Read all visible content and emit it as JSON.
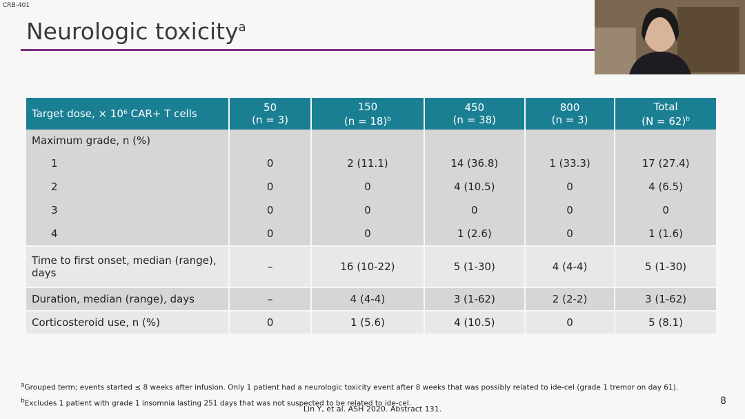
{
  "header": {
    "label": "CRB-401",
    "title": "Neurologic toxicity",
    "title_note": "a"
  },
  "table": {
    "corner": "Target dose, × 10⁶ CAR+ T cells",
    "columns": [
      {
        "dose": "50",
        "n": "(n = 3)"
      },
      {
        "dose": "150",
        "n": "(n = 18)",
        "note": "b"
      },
      {
        "dose": "450",
        "n": "(n = 38)"
      },
      {
        "dose": "800",
        "n": "(n = 3)"
      },
      {
        "dose": "Total",
        "n": "(N = 62)",
        "note": "b"
      }
    ],
    "grade_section": {
      "label": "Maximum grade, n (%)",
      "rows": [
        {
          "label": "1",
          "cells": [
            "0",
            "2 (11.1)",
            "14 (36.8)",
            "1 (33.3)",
            "17 (27.4)"
          ]
        },
        {
          "label": "2",
          "cells": [
            "0",
            "0",
            "4 (10.5)",
            "0",
            "4 (6.5)"
          ]
        },
        {
          "label": "3",
          "cells": [
            "0",
            "0",
            "0",
            "0",
            "0"
          ]
        },
        {
          "label": "4",
          "cells": [
            "0",
            "0",
            "1 (2.6)",
            "0",
            "1 (1.6)"
          ]
        }
      ]
    },
    "rows": [
      {
        "label": "Time to first onset, median (range), days",
        "cells": [
          "–",
          "16 (10-22)",
          "5 (1-30)",
          "4 (4-4)",
          "5 (1-30)"
        ]
      },
      {
        "label": "Duration, median (range), days",
        "cells": [
          "–",
          "4 (4-4)",
          "3 (1-62)",
          "2 (2-2)",
          "3 (1-62)"
        ]
      },
      {
        "label": "Corticosteroid use, n (%)",
        "cells": [
          "0",
          "1 (5.6)",
          "4 (10.5)",
          "0",
          "5 (8.1)"
        ]
      }
    ]
  },
  "footnotes": [
    {
      "mark": "a",
      "text": "Grouped term; events started ≤ 8 weeks after infusion. Only 1 patient had a neurologic toxicity event after 8 weeks that was possibly related to ide-cel (grade 1 tremor on day 61)."
    },
    {
      "mark": "b",
      "text": "Excludes 1 patient with grade 1 insomnia lasting 251 days that was not suspected to be related to ide-cel."
    }
  ],
  "citation": "Lin Y, et al. ASH 2020. Abstract 131.",
  "page_number": "8"
}
